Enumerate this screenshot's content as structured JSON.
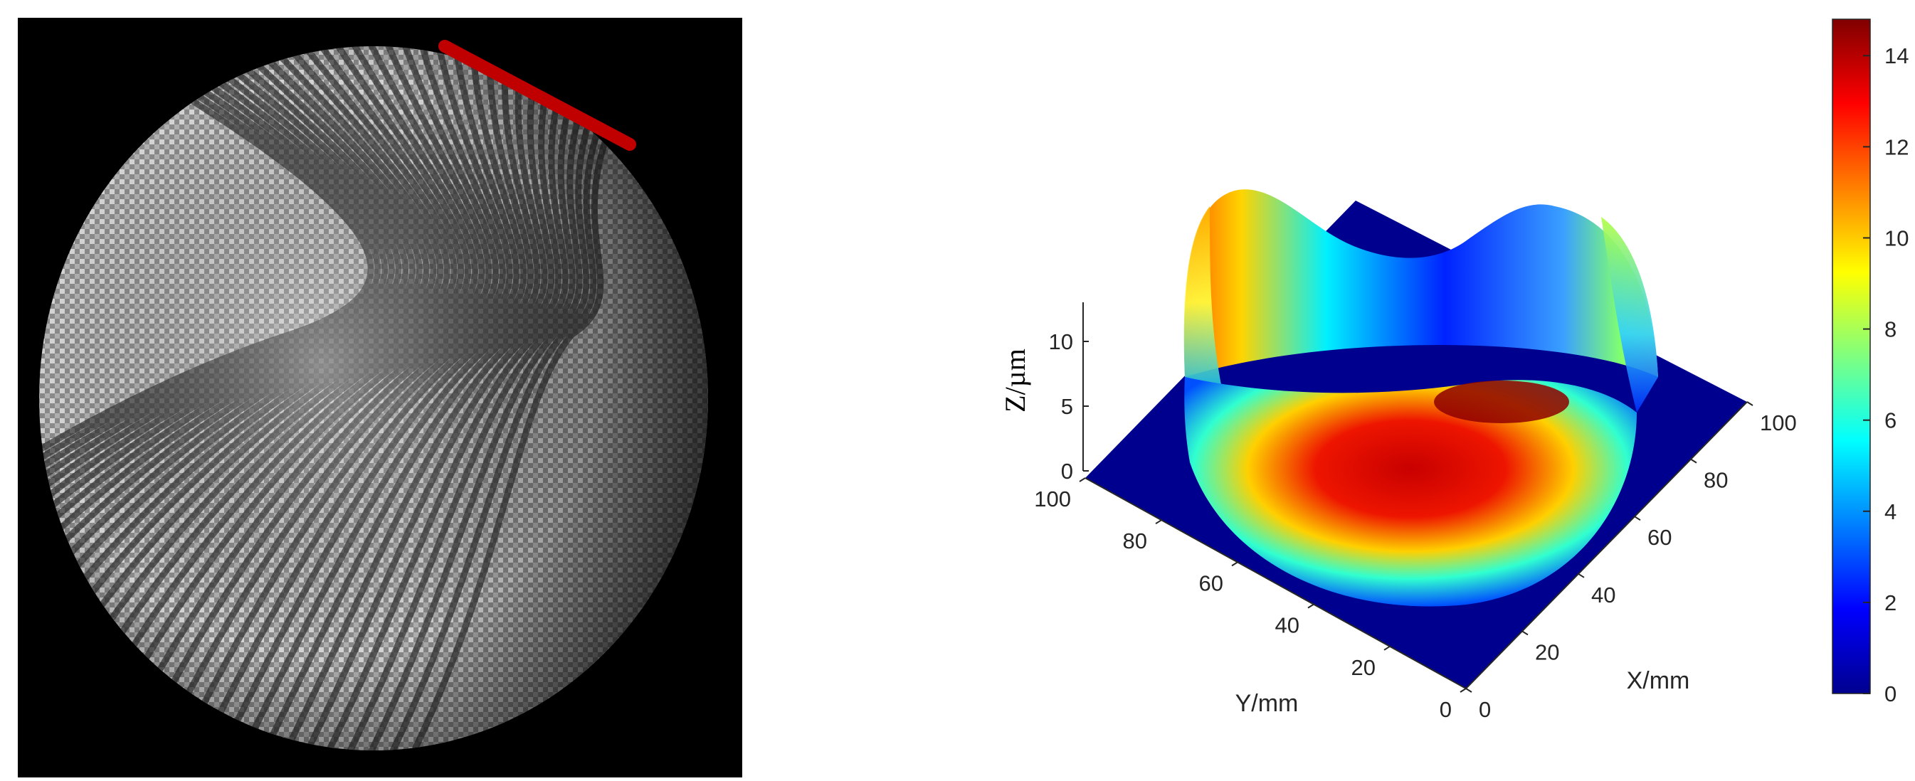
{
  "interferogram": {
    "marker_color": "#c00000",
    "background": "#000000"
  },
  "chart_data": {
    "type": "surface",
    "title": "",
    "xlabel": "X/mm",
    "ylabel": "Y/mm",
    "zlabel": "Z/µm",
    "xlim": [
      0,
      100
    ],
    "ylim": [
      0,
      100
    ],
    "zlim": [
      0,
      15
    ],
    "x_ticks": [
      "0",
      "20",
      "40",
      "60",
      "80",
      "100"
    ],
    "y_ticks": [
      "0",
      "20",
      "40",
      "60",
      "80",
      "100"
    ],
    "z_ticks": [
      "0",
      "5",
      "10"
    ],
    "colorbar": {
      "colormap": "jet",
      "range": [
        0,
        14.8
      ],
      "ticks": [
        "0",
        "2",
        "4",
        "6",
        "8",
        "10",
        "12",
        "14"
      ]
    },
    "grid": false
  }
}
